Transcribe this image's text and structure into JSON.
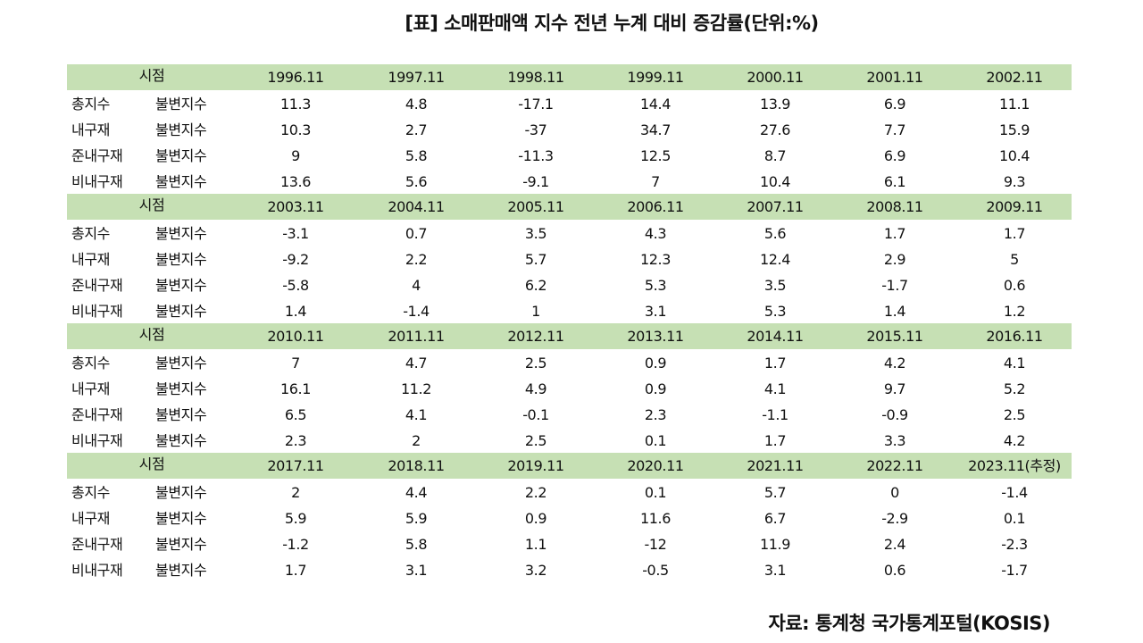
{
  "title": "[표] 소매판매액 지수 전년 누계 대비 증감률(단위:%)",
  "source": "자료: 통계청 국가통계포털(KOSIS)",
  "header_label": "시점",
  "row_labels": [
    {
      "group": "총지수",
      "type": "불변지수"
    },
    {
      "group": "내구재",
      "type": "불변지수"
    },
    {
      "group": "준내구재",
      "type": "불변지수"
    },
    {
      "group": "비내구재",
      "type": "불변지수"
    }
  ],
  "sections": [
    {
      "periods": [
        "1996.11",
        "1997.11",
        "1998.11",
        "1999.11",
        "2000.11",
        "2001.11",
        "2002.11"
      ],
      "rows": [
        [
          "11.3",
          "4.8",
          "-17.1",
          "14.4",
          "13.9",
          "6.9",
          "11.1"
        ],
        [
          "10.3",
          "2.7",
          "-37",
          "34.7",
          "27.6",
          "7.7",
          "15.9"
        ],
        [
          "9",
          "5.8",
          "-11.3",
          "12.5",
          "8.7",
          "6.9",
          "10.4"
        ],
        [
          "13.6",
          "5.6",
          "-9.1",
          "7",
          "10.4",
          "6.1",
          "9.3"
        ]
      ]
    },
    {
      "periods": [
        "2003.11",
        "2004.11",
        "2005.11",
        "2006.11",
        "2007.11",
        "2008.11",
        "2009.11"
      ],
      "rows": [
        [
          "-3.1",
          "0.7",
          "3.5",
          "4.3",
          "5.6",
          "1.7",
          "1.7"
        ],
        [
          "-9.2",
          "2.2",
          "5.7",
          "12.3",
          "12.4",
          "2.9",
          "5"
        ],
        [
          "-5.8",
          "4",
          "6.2",
          "5.3",
          "3.5",
          "-1.7",
          "0.6"
        ],
        [
          "1.4",
          "-1.4",
          "1",
          "3.1",
          "5.3",
          "1.4",
          "1.2"
        ]
      ]
    },
    {
      "periods": [
        "2010.11",
        "2011.11",
        "2012.11",
        "2013.11",
        "2014.11",
        "2015.11",
        "2016.11"
      ],
      "rows": [
        [
          "7",
          "4.7",
          "2.5",
          "0.9",
          "1.7",
          "4.2",
          "4.1"
        ],
        [
          "16.1",
          "11.2",
          "4.9",
          "0.9",
          "4.1",
          "9.7",
          "5.2"
        ],
        [
          "6.5",
          "4.1",
          "-0.1",
          "2.3",
          "-1.1",
          "-0.9",
          "2.5"
        ],
        [
          "2.3",
          "2",
          "2.5",
          "0.1",
          "1.7",
          "3.3",
          "4.2"
        ]
      ]
    },
    {
      "periods": [
        "2017.11",
        "2018.11",
        "2019.11",
        "2020.11",
        "2021.11",
        "2022.11",
        "2023.11(추정)"
      ],
      "rows": [
        [
          "2",
          "4.4",
          "2.2",
          "0.1",
          "5.7",
          "0",
          "-1.4"
        ],
        [
          "5.9",
          "5.9",
          "0.9",
          "11.6",
          "6.7",
          "-2.9",
          "0.1"
        ],
        [
          "-1.2",
          "5.8",
          "1.1",
          "-12",
          "11.9",
          "2.4",
          "-2.3"
        ],
        [
          "1.7",
          "3.1",
          "3.2",
          "-0.5",
          "3.1",
          "0.6",
          "-1.7"
        ]
      ]
    }
  ],
  "colors": {
    "header_band": "#c6e0b4",
    "text": "#111111",
    "background": "#ffffff"
  }
}
